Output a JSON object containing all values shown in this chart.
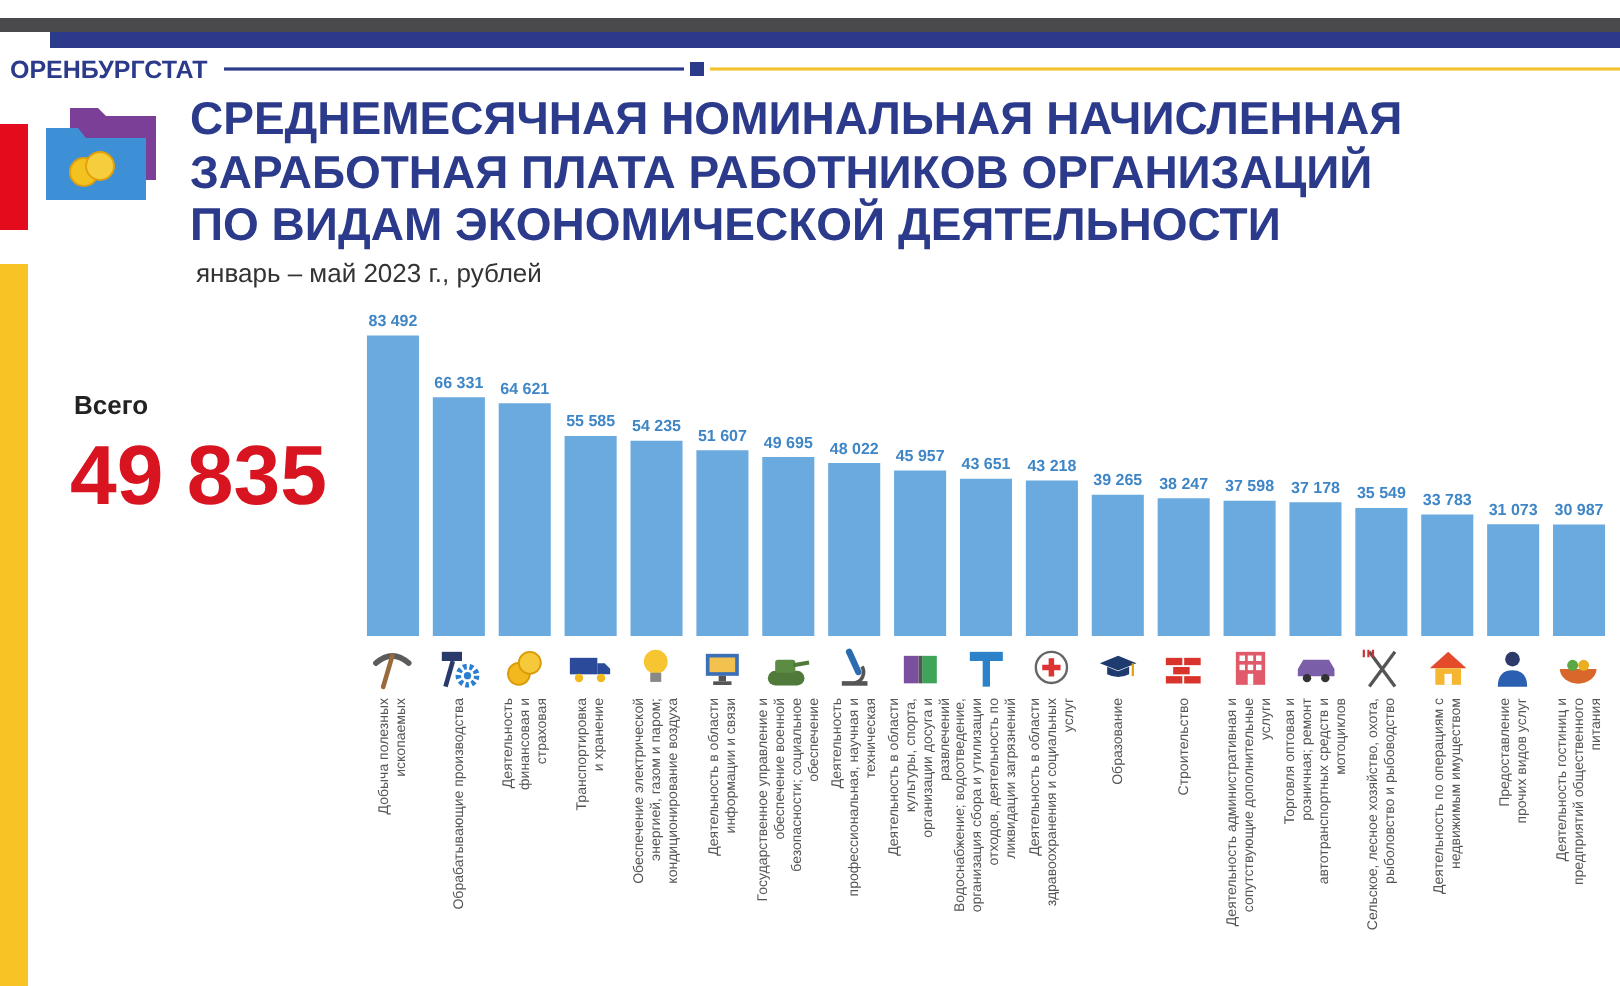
{
  "chart_data": {
    "type": "bar",
    "title": "СРЕДНЕМЕСЯЧНАЯ НОМИНАЛЬНАЯ НАЧИСЛЕННАЯ ЗАРАБОТНАЯ ПЛАТА РАБОТНИКОВ ОРГАНИЗАЦИЙ ПО ВИДАМ ЭКОНОМИЧЕСКОЙ ДЕЯТЕЛЬНОСТИ",
    "subtitle": "январь – май 2023 г., рублей",
    "annotations": [
      "ОРЕНБУРГСТАТ",
      "Всего",
      "49 835"
    ],
    "categories": [
      "Добыча полезных ископаемых",
      "Обрабатывающие производства",
      "Деятельность финансовая и страховая",
      "Транспортировка и хранение",
      "Обеспечение электрической энергией, газом и паром; кондиционирование воздуха",
      "Деятельность в области информации и связи",
      "Государственное управление и обеспечение военной безопасности; социальное обеспечение",
      "Деятельность профессиональная, научная и техническая",
      "Деятельность в области культуры, спорта, организации досуга и развлечений",
      "Водоснабжение; водоотведение, организация сбора и утилизации отходов, деятельность по ликвидации загрязнений",
      "Деятельность в области здравоохранения и социальных услуг",
      "Образование",
      "Строительство",
      "Деятельность административная и сопутствующие дополнительные услуги",
      "Торговля оптовая и розничная; ремонт автотранспортных средств и мотоциклов",
      "Сельское, лесное хозяйство, охота, рыболовство и рыбоводство",
      "Деятельность по операциям с недвижимым имуществом",
      "Предоставление прочих видов услуг",
      "Деятельность гостиниц и предприятий общественного питания"
    ],
    "values": [
      83492,
      66331,
      64621,
      55585,
      54235,
      51607,
      49695,
      48022,
      45957,
      43651,
      43218,
      39265,
      38247,
      37598,
      37178,
      35549,
      33783,
      31073,
      30987
    ],
    "color": "#6aaade",
    "data_labels": true
  }
}
